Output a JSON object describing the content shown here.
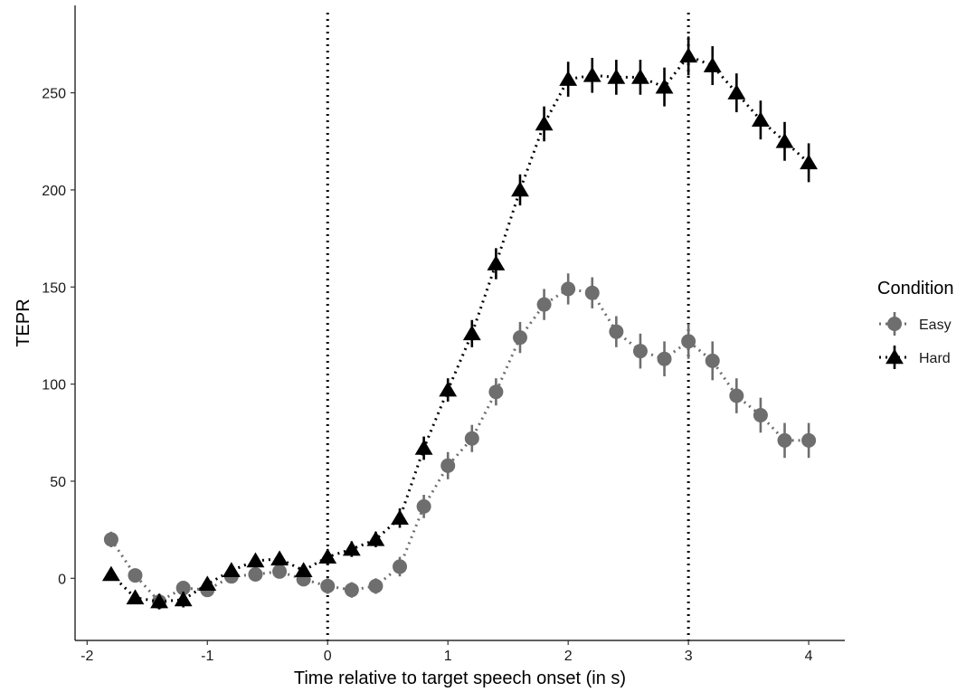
{
  "chart_data": {
    "type": "scatter",
    "title": "",
    "xlabel": "Time relative to target speech onset (in s)",
    "ylabel": "TEPR",
    "xlim": [
      -2.1,
      4.3
    ],
    "ylim": [
      -32,
      295
    ],
    "xticks": [
      -2,
      -1,
      0,
      1,
      2,
      3,
      4
    ],
    "yticks": [
      0,
      50,
      100,
      150,
      200,
      250
    ],
    "vlines": [
      0,
      3
    ],
    "grid": false,
    "legend": {
      "title": "Condition",
      "position": "right"
    },
    "x": [
      -1.8,
      -1.6,
      -1.4,
      -1.2,
      -1.0,
      -0.8,
      -0.6,
      -0.4,
      -0.2,
      0.0,
      0.2,
      0.4,
      0.6,
      0.8,
      1.0,
      1.2,
      1.4,
      1.6,
      1.8,
      2.0,
      2.2,
      2.4,
      2.6,
      2.8,
      3.0,
      3.2,
      3.4,
      3.6,
      3.8,
      4.0
    ],
    "series": [
      {
        "name": "Easy",
        "marker": "circle",
        "color": "#6e6e6e",
        "values": [
          20,
          1.5,
          -12,
          -5,
          -6,
          1,
          2,
          3.5,
          -0.5,
          -4,
          -6,
          -4,
          6,
          37,
          58,
          72,
          96,
          124,
          141,
          149,
          147,
          127,
          117,
          113,
          122,
          112,
          94,
          84,
          71,
          71
        ],
        "error": [
          4,
          3,
          3,
          3,
          3,
          3,
          3,
          3,
          3,
          4,
          4,
          4,
          5,
          6,
          7,
          7,
          7,
          8,
          8,
          8,
          8,
          8,
          9,
          9,
          9,
          10,
          9,
          9,
          9,
          9
        ]
      },
      {
        "name": "Hard",
        "marker": "triangle",
        "color": "#000000",
        "values": [
          2,
          -10,
          -12,
          -11,
          -3,
          4,
          9,
          10,
          4,
          11,
          15,
          20,
          31,
          67,
          97,
          126,
          162,
          200,
          234,
          257,
          259,
          258,
          258,
          253,
          269,
          264,
          250,
          236,
          225,
          214
        ],
        "error": [
          3,
          3,
          4,
          4,
          3,
          3,
          3,
          3,
          3,
          4,
          4,
          4,
          5,
          6,
          6,
          7,
          8,
          8,
          9,
          9,
          9,
          9,
          9,
          10,
          10,
          10,
          10,
          10,
          10,
          10
        ]
      }
    ]
  }
}
